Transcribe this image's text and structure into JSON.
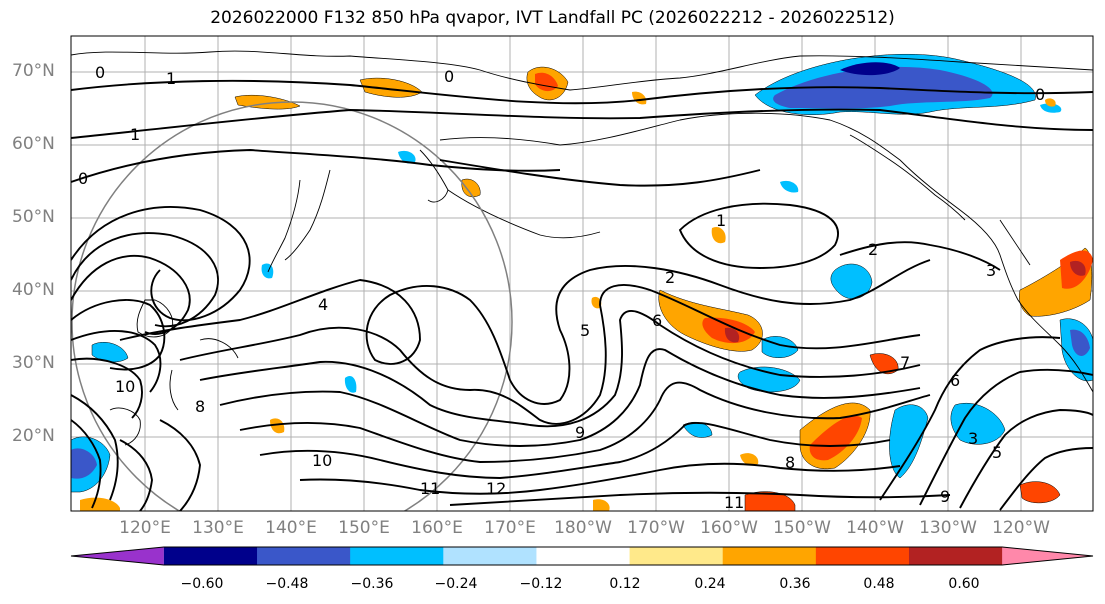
{
  "title": "2026022000 F132 850 hPa qvapor, IVT Landfall PC (2026022212 - 2026022512)",
  "lat_labels": [
    "70°N",
    "60°N",
    "50°N",
    "40°N",
    "30°N",
    "20°N"
  ],
  "lon_labels": [
    "120°E",
    "130°E",
    "140°E",
    "150°E",
    "160°E",
    "170°E",
    "180°W",
    "170°W",
    "160°W",
    "150°W",
    "140°W",
    "130°W",
    "120°W"
  ],
  "colorbar": {
    "ticks": [
      "−0.60",
      "−0.48",
      "−0.36",
      "−0.24",
      "−0.12",
      "0.12",
      "0.24",
      "0.36",
      "0.48",
      "0.60"
    ],
    "colors": [
      "#9932cc",
      "#00008b",
      "#3a57c9",
      "#00bfff",
      "#b0e2ff",
      "#ffffff",
      "#ffe98a",
      "#ffa500",
      "#ff4500",
      "#b22222",
      "#ff88aa"
    ]
  },
  "contour_labels": [
    "0",
    "1",
    "0",
    "1",
    "0",
    "1",
    "2",
    "3",
    "4",
    "5",
    "6",
    "8",
    "9",
    "10",
    "11",
    "12",
    "2",
    "3",
    "5",
    "6",
    "7",
    "8",
    "9",
    "10",
    "11",
    "0"
  ]
}
